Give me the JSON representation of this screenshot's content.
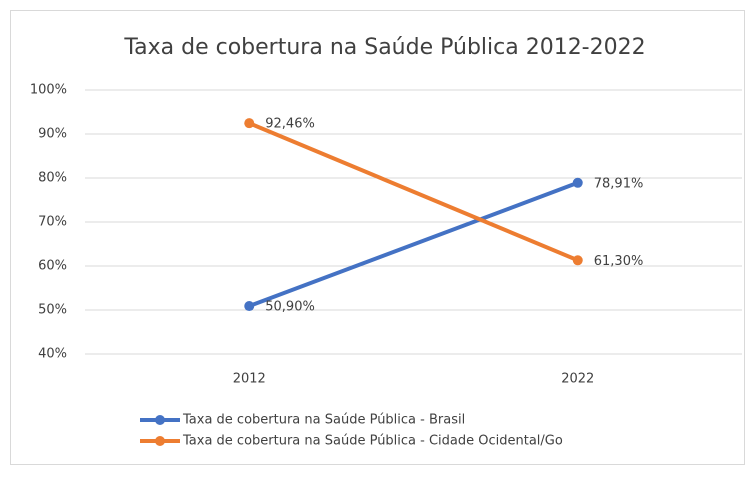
{
  "chart_data": {
    "type": "line",
    "title": "Taxa de cobertura na Saúde Pública 2012-2022",
    "categories": [
      "2012",
      "2022"
    ],
    "series": [
      {
        "name": "Taxa de cobertura na Saúde Pública - Brasil",
        "color": "#4472c4",
        "values": [
          50.9,
          78.91
        ],
        "value_labels": [
          "50,90%",
          "78,91%"
        ]
      },
      {
        "name": "Taxa de cobertura na Saúde Pública - Cidade Ocidental/Go",
        "color": "#ed7d31",
        "values": [
          92.46,
          61.3
        ],
        "value_labels": [
          "92,46%",
          "61,30%"
        ]
      }
    ],
    "ylim": [
      40,
      100
    ],
    "yticks": [
      {
        "value": 40,
        "label": "40%"
      },
      {
        "value": 50,
        "label": "50%"
      },
      {
        "value": 60,
        "label": "60%"
      },
      {
        "value": 70,
        "label": "70%"
      },
      {
        "value": 80,
        "label": "80%"
      },
      {
        "value": 90,
        "label": "90%"
      },
      {
        "value": 100,
        "label": "100%"
      }
    ],
    "grid": true,
    "legend": "bottom"
  }
}
